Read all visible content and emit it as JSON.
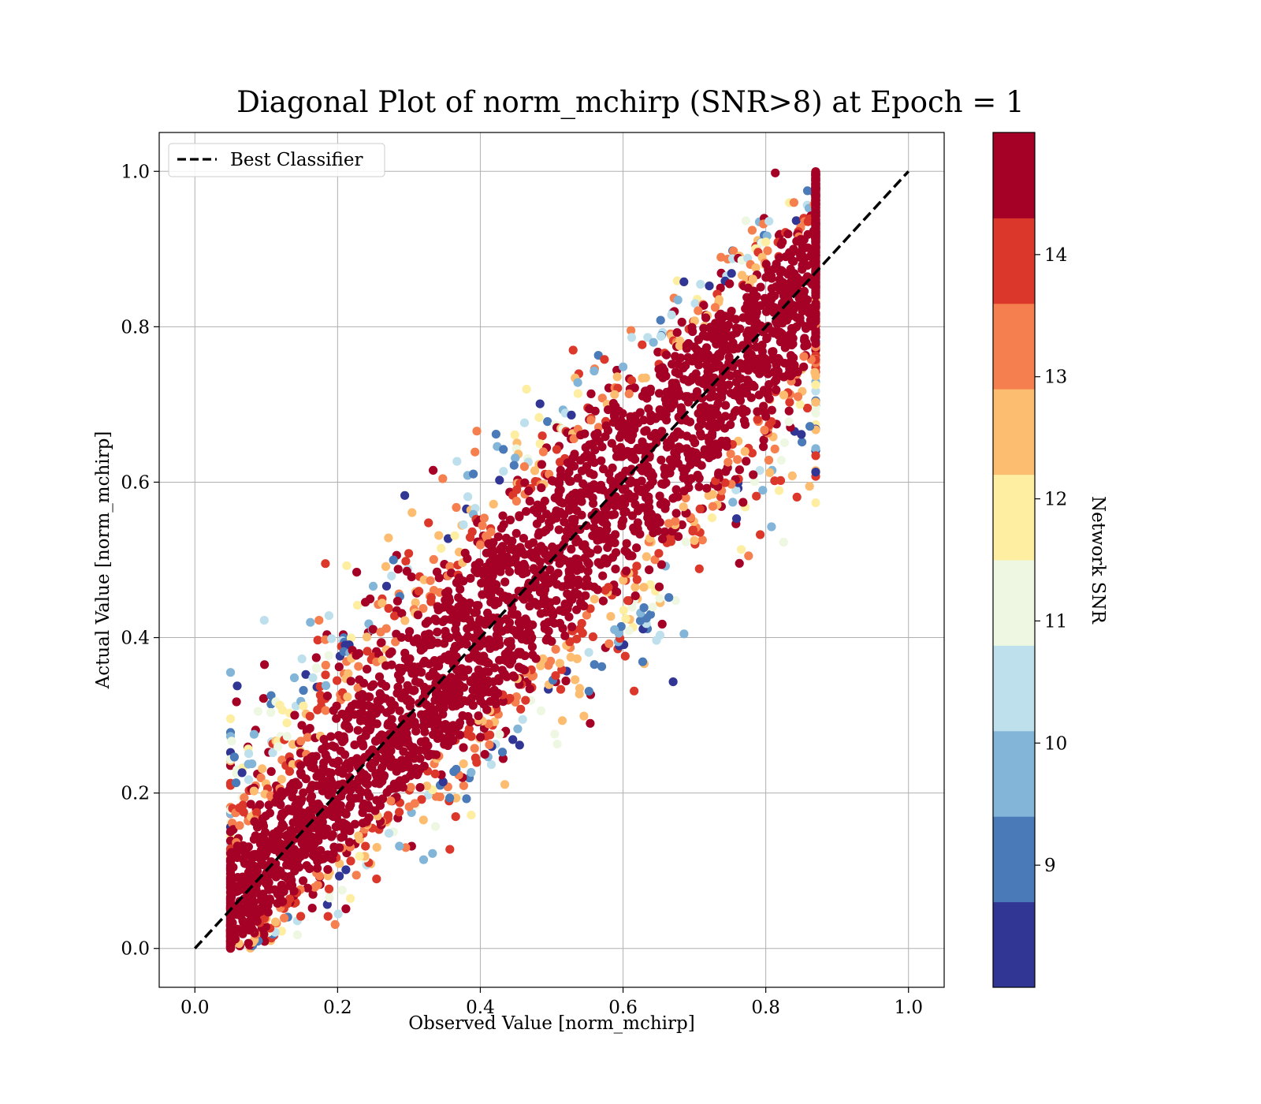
{
  "chart_data": {
    "type": "scatter",
    "title": "Diagonal Plot of norm_mchirp (SNR>8) at Epoch = 1",
    "xlabel": "Observed Value [norm_mchirp]",
    "ylabel": "Actual Value [norm_mchirp]",
    "xlim": [
      -0.05,
      1.05
    ],
    "ylim": [
      -0.05,
      1.05
    ],
    "x_ticks": [
      0.0,
      0.2,
      0.4,
      0.6,
      0.8,
      1.0
    ],
    "y_ticks": [
      0.0,
      0.2,
      0.4,
      0.6,
      0.8,
      1.0
    ],
    "x_tick_labels": [
      "0.0",
      "0.2",
      "0.4",
      "0.6",
      "0.8",
      "1.0"
    ],
    "y_tick_labels": [
      "0.0",
      "0.2",
      "0.4",
      "0.6",
      "0.8",
      "1.0"
    ],
    "grid": true,
    "legend": {
      "placement": "upper-left",
      "entries": [
        "Best Classifier"
      ]
    },
    "reference_line": {
      "label": "Best Classifier",
      "x": [
        0.0,
        1.0
      ],
      "y": [
        0.0,
        1.0
      ],
      "style": "dashed",
      "color": "#000000"
    },
    "scatter_band": {
      "description": "Dense cloud of points around y = x, color encodes Network SNR; high-SNR (dark red) points dominate near the diagonal, low-SNR points spread toward the band edges.",
      "x_range": [
        0.05,
        0.87
      ],
      "y_range": [
        0.0,
        1.0
      ]
    },
    "colorbar": {
      "label": "Network SNR",
      "range": [
        8.0,
        15.0
      ],
      "boundaries": [
        8.0,
        8.7,
        9.4,
        10.1,
        10.8,
        11.5,
        12.2,
        12.9,
        13.6,
        14.3,
        15.0
      ],
      "ticks": [
        9,
        10,
        11,
        12,
        13,
        14
      ],
      "tick_labels": [
        "9",
        "10",
        "11",
        "12",
        "13",
        "14"
      ],
      "colors": [
        "#313695",
        "#4a7ab7",
        "#82b5d7",
        "#bee0ec",
        "#eef7e1",
        "#feeea2",
        "#fdbd71",
        "#f57f4e",
        "#db382b",
        "#a50026"
      ]
    }
  }
}
